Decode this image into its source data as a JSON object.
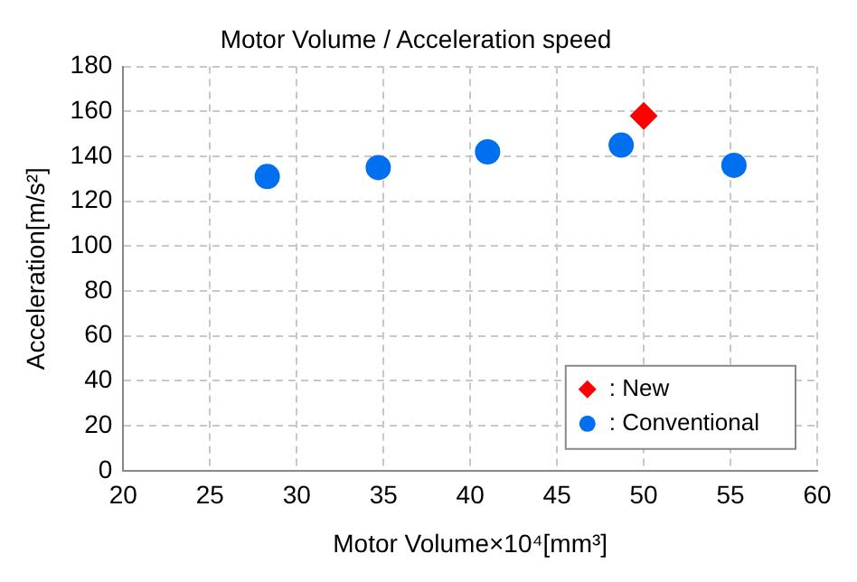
{
  "chart_data": {
    "type": "scatter",
    "title": "Motor Volume / Acceleration speed",
    "xlabel": "Motor Volume×10⁴[mm³]",
    "ylabel": "Acceleration[m/s²]",
    "series": [
      {
        "name": ": New",
        "color": "#ff0000",
        "marker": "diamond",
        "x": [
          50
        ],
        "values": [
          158
        ]
      },
      {
        "name": ": Conventional",
        "color": "#0070f0",
        "marker": "circle",
        "x": [
          28.3,
          34.7,
          41,
          48.7,
          55.2
        ],
        "values": [
          131,
          135,
          142,
          145,
          136
        ]
      }
    ],
    "xlim": [
      20,
      60
    ],
    "xticks": [
      20,
      25,
      30,
      35,
      40,
      45,
      50,
      55,
      60
    ],
    "ylim": [
      0,
      180
    ],
    "yticks": [
      0,
      20,
      40,
      60,
      80,
      100,
      120,
      140,
      160,
      180
    ],
    "grid": true,
    "legend": "bottom right",
    "line_style": "dashed"
  }
}
